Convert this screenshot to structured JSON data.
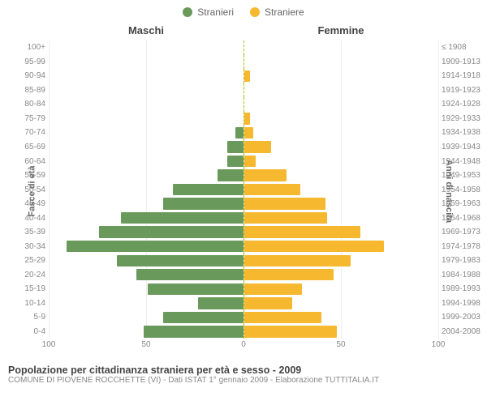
{
  "legend": {
    "male": {
      "label": "Stranieri",
      "color": "#6a9a5b"
    },
    "female": {
      "label": "Straniere",
      "color": "#f5b82e"
    }
  },
  "columns": {
    "left": "Maschi",
    "right": "Femmine"
  },
  "axis_labels": {
    "left": "Fasce di età",
    "right": "Anni di nascita"
  },
  "xaxis": {
    "max": 100,
    "ticks": [
      0,
      50,
      100
    ]
  },
  "colors": {
    "male_bar": "#6a9a5b",
    "female_bar": "#f5b82e",
    "grid": "#eeeeee",
    "center_line": "#b3b817",
    "text_muted": "#888888",
    "background": "#ffffff"
  },
  "chart_type": "population-pyramid",
  "rows": [
    {
      "age": "100+",
      "birth": "≤ 1908",
      "m": 0,
      "f": 0
    },
    {
      "age": "95-99",
      "birth": "1909-1913",
      "m": 0,
      "f": 0
    },
    {
      "age": "90-94",
      "birth": "1914-1918",
      "m": 0,
      "f": 3
    },
    {
      "age": "85-89",
      "birth": "1919-1923",
      "m": 0,
      "f": 0
    },
    {
      "age": "80-84",
      "birth": "1924-1928",
      "m": 0,
      "f": 0
    },
    {
      "age": "75-79",
      "birth": "1929-1933",
      "m": 0,
      "f": 3
    },
    {
      "age": "70-74",
      "birth": "1934-1938",
      "m": 4,
      "f": 5
    },
    {
      "age": "65-69",
      "birth": "1939-1943",
      "m": 8,
      "f": 14
    },
    {
      "age": "60-64",
      "birth": "1944-1948",
      "m": 8,
      "f": 6
    },
    {
      "age": "55-59",
      "birth": "1949-1953",
      "m": 13,
      "f": 22
    },
    {
      "age": "50-54",
      "birth": "1954-1958",
      "m": 36,
      "f": 29
    },
    {
      "age": "45-49",
      "birth": "1959-1963",
      "m": 41,
      "f": 42
    },
    {
      "age": "40-44",
      "birth": "1964-1968",
      "m": 63,
      "f": 43
    },
    {
      "age": "35-39",
      "birth": "1969-1973",
      "m": 74,
      "f": 60
    },
    {
      "age": "30-34",
      "birth": "1974-1978",
      "m": 91,
      "f": 72
    },
    {
      "age": "25-29",
      "birth": "1979-1983",
      "m": 65,
      "f": 55
    },
    {
      "age": "20-24",
      "birth": "1984-1988",
      "m": 55,
      "f": 46
    },
    {
      "age": "15-19",
      "birth": "1989-1993",
      "m": 49,
      "f": 30
    },
    {
      "age": "10-14",
      "birth": "1994-1998",
      "m": 23,
      "f": 25
    },
    {
      "age": "5-9",
      "birth": "1999-2003",
      "m": 41,
      "f": 40
    },
    {
      "age": "0-4",
      "birth": "2004-2008",
      "m": 51,
      "f": 48
    }
  ],
  "caption": {
    "title": "Popolazione per cittadinanza straniera per età e sesso - 2009",
    "subtitle": "COMUNE DI PIOVENE ROCCHETTE (VI) - Dati ISTAT 1° gennaio 2009 - Elaborazione TUTTITALIA.IT"
  }
}
